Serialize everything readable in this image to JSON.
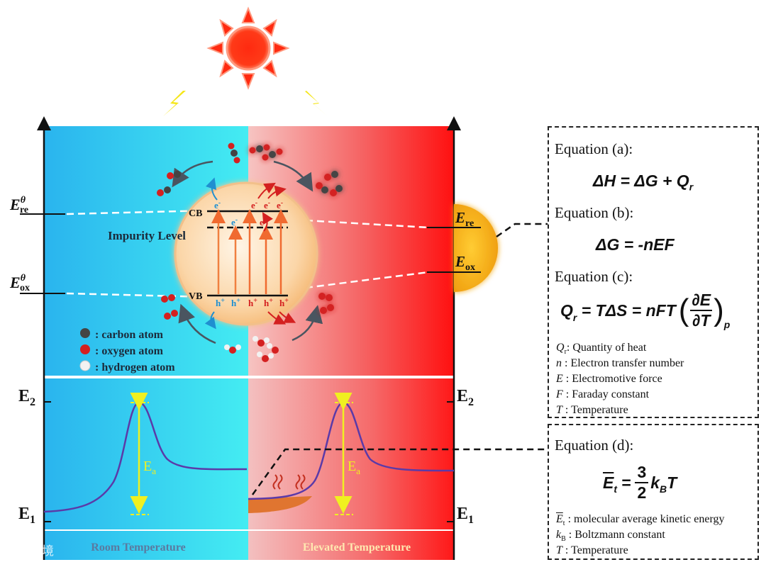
{
  "labels": {
    "e_re_left_main": "E",
    "e_re_left_sup": "θ",
    "e_re_left_sub": "re",
    "e_ox_left_main": "E",
    "e_ox_left_sup": "θ",
    "e_ox_left_sub": "ox",
    "cb": "CB",
    "vb": "VB",
    "impurity_level": "Impurity Level",
    "e_re_right_main": "E",
    "e_re_right_sub": "re",
    "e_ox_right_main": "E",
    "e_ox_right_sub": "ox",
    "electron": "e",
    "electron_sup": "-",
    "hole": "h",
    "hole_sup": "+",
    "e2_main": "E",
    "e2_sub": "2",
    "e1_main": "E",
    "e1_sub": "1",
    "ea_main": "E",
    "ea_sub": "a",
    "room_temperature": "Room Temperature",
    "elevated_temperature": "Elevated Temperature"
  },
  "legend": [
    {
      "label": ": carbon atom",
      "color": "#444444"
    },
    {
      "label": ": oxygen atom",
      "color": "#d42020"
    },
    {
      "label": ": hydrogen atom",
      "color": "#f2f2f2"
    }
  ],
  "equations": {
    "a_title": "Equation (a):",
    "a_formula": "ΔH = ΔG + Q",
    "a_formula_sub": "r",
    "b_title": "Equation (b):",
    "b_formula": "ΔG = -nEF",
    "c_title": "Equation (c):",
    "c_formula_left": "Q",
    "c_formula_left_sub": "r",
    "c_formula_mid": " = TΔS = nFT",
    "c_frac_num": "∂E",
    "c_frac_den": "∂T",
    "c_frac_sub": "p",
    "d_title": "Equation (d):",
    "d_formula_lhs": "E",
    "d_formula_lhs_sub": "t",
    "d_frac_num": "3",
    "d_frac_den": "2",
    "d_formula_rhs": "k",
    "d_formula_rhs_sub": "B",
    "d_formula_tail": "T"
  },
  "definitions_c": [
    {
      "symbol": "Q",
      "sub": "r",
      "text": ": Quantity of heat"
    },
    {
      "symbol": "n",
      "sub": "",
      "text": " : Electron transfer number"
    },
    {
      "symbol": "E",
      "sub": "",
      "text": " : Electromotive force"
    },
    {
      "symbol": "F",
      "sub": "",
      "text": " : Faraday constant"
    },
    {
      "symbol": "T",
      "sub": "",
      "text": " : Temperature"
    }
  ],
  "definitions_d": [
    {
      "symbol": "E",
      "sub": "t",
      "text": " : molecular average kinetic energy"
    },
    {
      "symbol": "k",
      "sub": "B",
      "text": " : Boltzmann constant"
    },
    {
      "symbol": "T",
      "sub": "",
      "text": " : Temperature"
    }
  ],
  "watermark": "大数跨境",
  "colors": {
    "cold_blue": "#29b6ee",
    "cold_cyan": "#3ee6f2",
    "hot_pink": "#f3bcbc",
    "hot_red": "#ff1a1a",
    "sun": "#ff2a10",
    "lightning": "#f5e61a",
    "curve": "#5b3aa8",
    "ea_arrow": "#f0f020"
  }
}
